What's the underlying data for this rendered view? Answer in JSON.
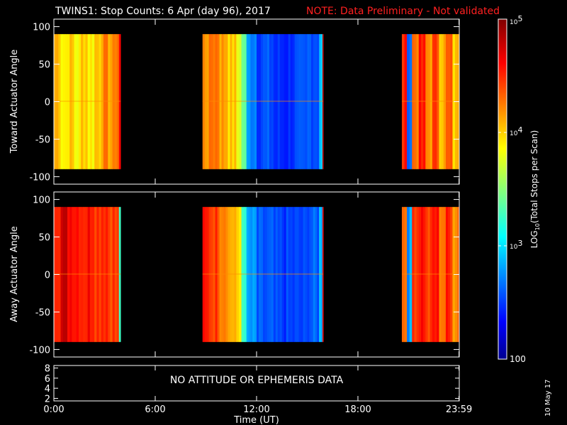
{
  "figure": {
    "title": "TWINS1: Stop Counts:  6 Apr (day  96), 2017",
    "note": "NOTE: Data Preliminary - Not validated",
    "datestamp": "10 May 17",
    "colors": {
      "background": "#000000",
      "axes": "#ffffff",
      "note": "#ff2020"
    }
  },
  "chart_data": [
    {
      "type": "heatmap",
      "panel": "toward",
      "ylabel": "Toward Actuator Angle",
      "ylim": [
        -110,
        110
      ],
      "yticks": [
        100,
        50,
        0,
        -50,
        -100
      ],
      "xlim": [
        0,
        24
      ],
      "data_y_range": [
        -90,
        90
      ],
      "colorscale": "log",
      "data_blocks": [
        {
          "t_start": 0.0,
          "t_end": 3.95,
          "columns": [
            {
              "t": 0.0,
              "log10": 4.1
            },
            {
              "t": 0.4,
              "log10": 3.9
            },
            {
              "t": 0.8,
              "log10": 4.0
            },
            {
              "t": 1.2,
              "log10": 3.85
            },
            {
              "t": 1.6,
              "log10": 4.05
            },
            {
              "t": 2.0,
              "log10": 3.9
            },
            {
              "t": 2.4,
              "log10": 4.05
            },
            {
              "t": 2.8,
              "log10": 4.2
            },
            {
              "t": 3.2,
              "log10": 4.15
            },
            {
              "t": 3.6,
              "log10": 4.3
            },
            {
              "t": 3.85,
              "log10": 4.6
            }
          ]
        },
        {
          "t_start": 8.8,
          "t_end": 15.95,
          "columns": [
            {
              "t": 8.8,
              "log10": 4.2
            },
            {
              "t": 9.3,
              "log10": 4.3
            },
            {
              "t": 9.8,
              "log10": 4.15
            },
            {
              "t": 10.3,
              "log10": 4.0
            },
            {
              "t": 10.8,
              "log10": 3.8
            },
            {
              "t": 11.1,
              "log10": 3.4
            },
            {
              "t": 11.4,
              "log10": 2.75
            },
            {
              "t": 12.0,
              "log10": 2.55
            },
            {
              "t": 13.0,
              "log10": 2.45
            },
            {
              "t": 14.0,
              "log10": 2.5
            },
            {
              "t": 15.0,
              "log10": 2.6
            },
            {
              "t": 15.7,
              "log10": 2.9
            },
            {
              "t": 15.9,
              "log10": 4.7
            }
          ]
        },
        {
          "t_start": 20.6,
          "t_end": 23.99,
          "columns": [
            {
              "t": 20.6,
              "log10": 4.5
            },
            {
              "t": 20.9,
              "log10": 2.7
            },
            {
              "t": 21.2,
              "log10": 4.3
            },
            {
              "t": 21.6,
              "log10": 4.5
            },
            {
              "t": 22.0,
              "log10": 4.2
            },
            {
              "t": 22.4,
              "log10": 4.4
            },
            {
              "t": 22.8,
              "log10": 4.1
            },
            {
              "t": 23.2,
              "log10": 4.3
            },
            {
              "t": 23.6,
              "log10": 4.0
            },
            {
              "t": 23.9,
              "log10": 4.2
            }
          ]
        }
      ]
    },
    {
      "type": "heatmap",
      "panel": "away",
      "ylabel": "Away Actuator Angle",
      "ylim": [
        -110,
        110
      ],
      "yticks": [
        100,
        50,
        0,
        -50,
        -100
      ],
      "xlim": [
        0,
        24
      ],
      "data_y_range": [
        -90,
        90
      ],
      "colorscale": "log",
      "data_blocks": [
        {
          "t_start": 0.0,
          "t_end": 3.95,
          "columns": [
            {
              "t": 0.0,
              "log10": 4.6
            },
            {
              "t": 0.4,
              "log10": 4.75
            },
            {
              "t": 0.8,
              "log10": 4.65
            },
            {
              "t": 1.2,
              "log10": 4.6
            },
            {
              "t": 1.6,
              "log10": 4.55
            },
            {
              "t": 2.0,
              "log10": 4.6
            },
            {
              "t": 2.4,
              "log10": 4.5
            },
            {
              "t": 2.8,
              "log10": 4.55
            },
            {
              "t": 3.2,
              "log10": 4.45
            },
            {
              "t": 3.6,
              "log10": 4.4
            },
            {
              "t": 3.85,
              "log10": 3.3
            }
          ]
        },
        {
          "t_start": 8.8,
          "t_end": 15.95,
          "columns": [
            {
              "t": 8.8,
              "log10": 4.5
            },
            {
              "t": 9.3,
              "log10": 4.45
            },
            {
              "t": 9.8,
              "log10": 4.3
            },
            {
              "t": 10.3,
              "log10": 4.1
            },
            {
              "t": 10.8,
              "log10": 3.9
            },
            {
              "t": 11.1,
              "log10": 3.3
            },
            {
              "t": 11.4,
              "log10": 2.75
            },
            {
              "t": 12.0,
              "log10": 2.55
            },
            {
              "t": 13.0,
              "log10": 2.5
            },
            {
              "t": 14.0,
              "log10": 2.5
            },
            {
              "t": 15.0,
              "log10": 2.6
            },
            {
              "t": 15.7,
              "log10": 2.9
            },
            {
              "t": 15.9,
              "log10": 4.7
            }
          ]
        },
        {
          "t_start": 20.6,
          "t_end": 23.99,
          "columns": [
            {
              "t": 20.6,
              "log10": 4.3
            },
            {
              "t": 20.9,
              "log10": 2.8
            },
            {
              "t": 21.2,
              "log10": 4.5
            },
            {
              "t": 21.6,
              "log10": 4.6
            },
            {
              "t": 22.0,
              "log10": 4.4
            },
            {
              "t": 22.4,
              "log10": 4.55
            },
            {
              "t": 22.8,
              "log10": 4.3
            },
            {
              "t": 23.2,
              "log10": 4.5
            },
            {
              "t": 23.6,
              "log10": 4.2
            },
            {
              "t": 23.9,
              "log10": 4.4
            }
          ]
        }
      ]
    },
    {
      "type": "line",
      "panel": "attitude",
      "ylim": [
        1.5,
        8.5
      ],
      "yticks": [
        8,
        6,
        4,
        2
      ],
      "xlim": [
        0,
        24
      ],
      "xticks": [
        0,
        6,
        12,
        18,
        23.983
      ],
      "xticklabels": [
        "0:00",
        "6:00",
        "12:00",
        "18:00",
        "23:59"
      ],
      "xlabel": "Time (UT)",
      "message": "NO ATTITUDE OR EPHEMERIS DATA",
      "series": []
    }
  ],
  "colorbar": {
    "label": "LOG10(Total Stops per Scan)",
    "label_prefix": "LOG",
    "label_sub": "10",
    "label_suffix": "(Total Stops per Scan)",
    "scale": "log",
    "range": [
      100,
      100000
    ],
    "ticks": [
      {
        "value": 100000,
        "base": "10",
        "exp": "5"
      },
      {
        "value": 10000,
        "base": "10",
        "exp": "4"
      },
      {
        "value": 1000,
        "base": "10",
        "exp": "3"
      },
      {
        "value": 100,
        "text": "100"
      }
    ]
  }
}
